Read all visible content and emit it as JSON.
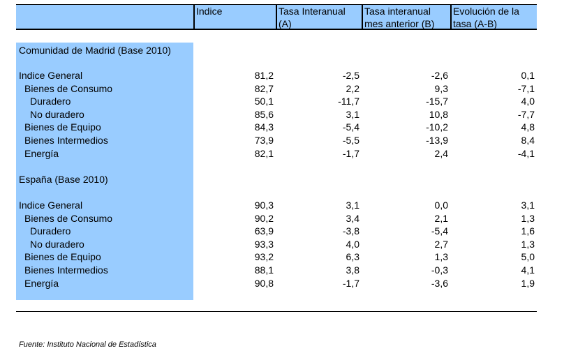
{
  "header": {
    "columns": [
      {
        "line1": "Indice",
        "line2": ""
      },
      {
        "line1": "Tasa Interanual",
        "line2": "(A)"
      },
      {
        "line1": "Tasa interanual",
        "line2": "mes anterior (B)"
      },
      {
        "line1": "Evolución de la",
        "line2": "tasa (A-B)"
      }
    ]
  },
  "sections": [
    {
      "title": "Comunidad de Madrid (Base 2010)",
      "rows": [
        {
          "label": "Indice General",
          "indent": 0,
          "values": [
            "81,2",
            "-2,5",
            "-2,6",
            "0,1"
          ]
        },
        {
          "label": "Bienes de Consumo",
          "indent": 1,
          "values": [
            "82,7",
            "2,2",
            "9,3",
            "-7,1"
          ]
        },
        {
          "label": "Duradero",
          "indent": 2,
          "values": [
            "50,1",
            "-11,7",
            "-15,7",
            "4,0"
          ]
        },
        {
          "label": "No duradero",
          "indent": 2,
          "values": [
            "85,6",
            "3,1",
            "10,8",
            "-7,7"
          ]
        },
        {
          "label": "Bienes de Equipo",
          "indent": 1,
          "values": [
            "84,3",
            "-5,4",
            "-10,2",
            "4,8"
          ]
        },
        {
          "label": "Bienes Intermedios",
          "indent": 1,
          "values": [
            "73,9",
            "-5,5",
            "-13,9",
            "8,4"
          ]
        },
        {
          "label": "Energía",
          "indent": 1,
          "values": [
            "82,1",
            "-1,7",
            "2,4",
            "-4,1"
          ]
        }
      ]
    },
    {
      "title": "España (Base 2010)",
      "rows": [
        {
          "label": "Indice General",
          "indent": 0,
          "values": [
            "90,3",
            "3,1",
            "0,0",
            "3,1"
          ]
        },
        {
          "label": "Bienes de Consumo",
          "indent": 1,
          "values": [
            "90,2",
            "3,4",
            "2,1",
            "1,3"
          ]
        },
        {
          "label": "Duradero",
          "indent": 2,
          "values": [
            "63,9",
            "-3,8",
            "-5,4",
            "1,6"
          ]
        },
        {
          "label": "No duradero",
          "indent": 2,
          "values": [
            "93,3",
            "4,0",
            "2,7",
            "1,3"
          ]
        },
        {
          "label": "Bienes de Equipo",
          "indent": 1,
          "values": [
            "93,2",
            "6,3",
            "1,3",
            "5,0"
          ]
        },
        {
          "label": "Bienes Intermedios",
          "indent": 1,
          "values": [
            "88,1",
            "3,8",
            "-0,3",
            "4,1"
          ]
        },
        {
          "label": "Energía",
          "indent": 1,
          "values": [
            "90,8",
            "-1,7",
            "-3,6",
            "1,9"
          ]
        }
      ]
    }
  ],
  "footer": {
    "source": "Fuente: Instituto Nacional de Estadística"
  },
  "colors": {
    "label_band": "#99ccff"
  }
}
